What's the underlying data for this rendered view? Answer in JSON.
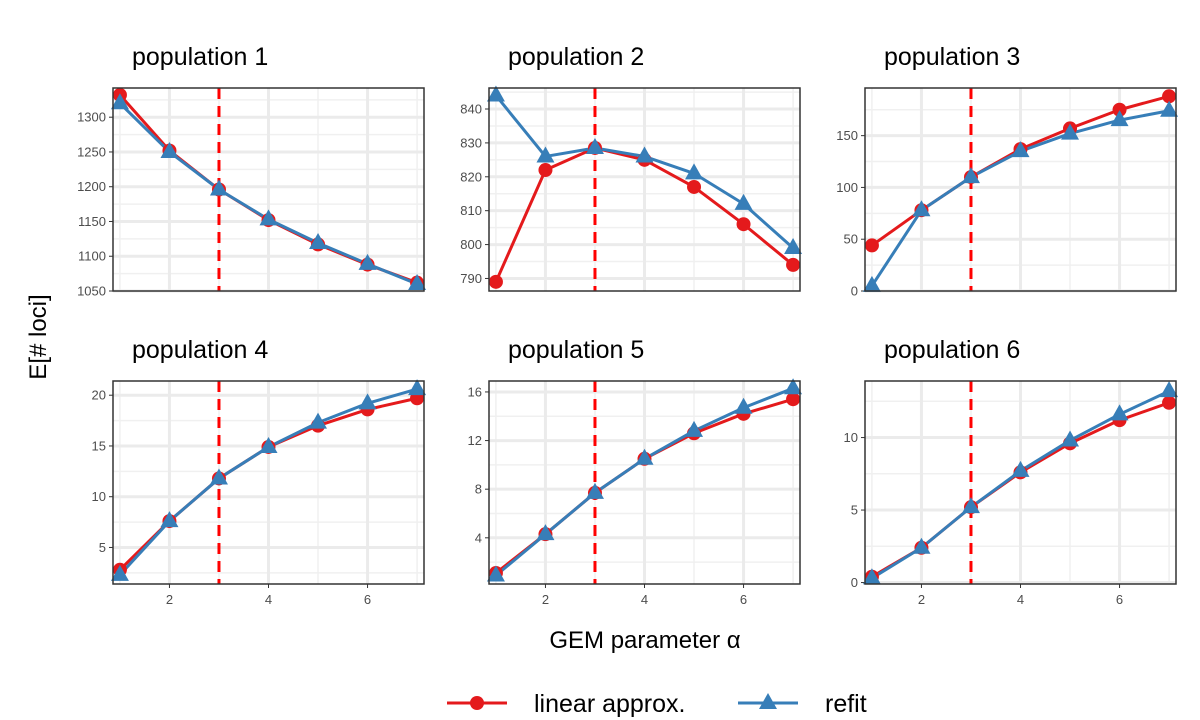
{
  "chart_data": {
    "type": "line",
    "xlabel": "GEM parameter α",
    "ylabel": "E[# loci]",
    "reference_line": {
      "x": 3,
      "color": "#ff0000",
      "style": "dashed"
    },
    "legend": {
      "placement": "bottom",
      "entries": [
        {
          "label": "linear approx.",
          "color": "#e41a1c",
          "marker": "circle"
        },
        {
          "label": "refit",
          "color": "#377eb8",
          "marker": "triangle"
        }
      ]
    },
    "grid": true,
    "x": [
      1,
      2,
      3,
      4,
      5,
      6,
      7
    ],
    "panels": [
      {
        "title": "population 1",
        "xlim": [
          0.86,
          7.14
        ],
        "ylim": [
          1050,
          1342
        ],
        "yticks": [
          1050,
          1100,
          1150,
          1200,
          1250,
          1300
        ],
        "xticks": [],
        "series": [
          {
            "name": "linear approx.",
            "values": [
              1332,
              1252,
              1196,
              1152,
              1117,
              1088,
              1062
            ]
          },
          {
            "name": "refit",
            "values": [
              1320,
              1250,
              1196,
              1153,
              1119,
              1089,
              1060
            ]
          }
        ]
      },
      {
        "title": "population 2",
        "xlim": [
          0.86,
          7.14
        ],
        "ylim": [
          786.3,
          846.2
        ],
        "yticks": [
          790,
          800,
          810,
          820,
          830,
          840
        ],
        "xticks": [],
        "series": [
          {
            "name": "linear approx.",
            "values": [
              789,
              822,
              828.5,
              825,
              817,
              806,
              794
            ]
          },
          {
            "name": "refit",
            "values": [
              844,
              826,
              828.5,
              826,
              821,
              812,
              799
            ]
          }
        ]
      },
      {
        "title": "population 3",
        "xlim": [
          0.86,
          7.14
        ],
        "ylim": [
          0,
          196
        ],
        "yticks": [
          0,
          50,
          100,
          150
        ],
        "xticks": [],
        "series": [
          {
            "name": "linear approx.",
            "values": [
              44,
              78,
              110,
              137,
              157,
              175,
              188
            ]
          },
          {
            "name": "refit",
            "values": [
              5,
              78,
              110,
              135,
              152,
              165,
              174
            ]
          }
        ]
      },
      {
        "title": "population 4",
        "xlim": [
          0.86,
          7.14
        ],
        "ylim": [
          1.4,
          21.4
        ],
        "yticks": [
          5,
          10,
          15,
          20
        ],
        "xticks": [
          2,
          4,
          6
        ],
        "series": [
          {
            "name": "linear approx.",
            "values": [
              2.8,
              7.6,
              11.8,
              14.9,
              17.0,
              18.6,
              19.7
            ]
          },
          {
            "name": "refit",
            "values": [
              2.3,
              7.6,
              11.8,
              14.9,
              17.3,
              19.2,
              20.6
            ]
          }
        ]
      },
      {
        "title": "population 5",
        "xlim": [
          0.86,
          7.14
        ],
        "ylim": [
          0.2,
          16.9
        ],
        "yticks": [
          4,
          8,
          12,
          16
        ],
        "xticks": [
          2,
          4,
          6
        ],
        "series": [
          {
            "name": "linear approx.",
            "values": [
              1.1,
              4.3,
              7.7,
              10.5,
              12.6,
              14.2,
              15.4
            ]
          },
          {
            "name": "refit",
            "values": [
              0.9,
              4.3,
              7.7,
              10.5,
              12.8,
              14.7,
              16.3
            ]
          }
        ]
      },
      {
        "title": "population 6",
        "xlim": [
          0.86,
          7.14
        ],
        "ylim": [
          -0.1,
          13.9
        ],
        "yticks": [
          0,
          5,
          10
        ],
        "xticks": [
          2,
          4,
          6
        ],
        "series": [
          {
            "name": "linear approx.",
            "values": [
              0.4,
              2.4,
              5.2,
              7.6,
              9.6,
              11.2,
              12.4
            ]
          },
          {
            "name": "refit",
            "values": [
              0.3,
              2.4,
              5.2,
              7.7,
              9.8,
              11.6,
              13.2
            ]
          }
        ]
      }
    ]
  }
}
